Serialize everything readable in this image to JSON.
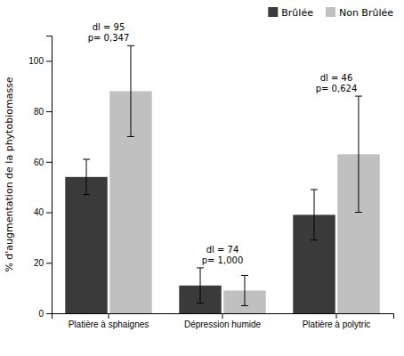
{
  "chart_data": {
    "type": "bar",
    "categories": [
      "Platière à sphaignes",
      "Dépression humide",
      "Platière à polytric"
    ],
    "series": [
      {
        "name": "Brûlée",
        "color": "#3a3a3a",
        "values": [
          54,
          11,
          39
        ],
        "errors": [
          7,
          7,
          10
        ]
      },
      {
        "name": "Non Brûlée",
        "color": "#c0c0c0",
        "values": [
          88,
          9,
          63
        ],
        "errors": [
          18,
          6,
          23
        ]
      }
    ],
    "y_label": "% d'augmentation de la phytobiomasse",
    "ylim": [
      0,
      110
    ],
    "yticks": [
      0,
      20,
      40,
      60,
      80,
      100
    ],
    "annotations": [
      {
        "text": "dl = 95\np= 0,347",
        "category": "Platière à sphaignes"
      },
      {
        "text": "dl = 74\np= 1,000",
        "category": "Dépression humide"
      },
      {
        "text": "dl = 46\np= 0,624",
        "category": "Platière à polytric"
      }
    ],
    "grid": false,
    "legend": "upper right"
  }
}
